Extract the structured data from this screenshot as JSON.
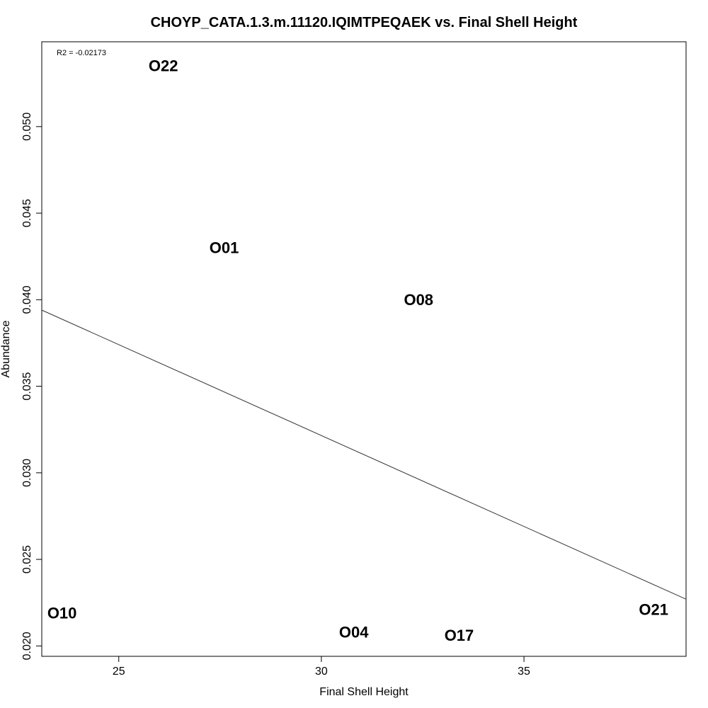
{
  "chart_data": {
    "type": "scatter",
    "title": "CHOYP_CATA.1.3.m.11120.IQIMTPEQAEK vs. Final Shell Height",
    "xlabel": "Final Shell Height",
    "ylabel": "Abundance",
    "xlim": [
      23.1,
      39.0
    ],
    "ylim": [
      0.0194,
      0.0549
    ],
    "xticks": [
      25,
      30,
      35
    ],
    "xtick_labels": [
      "25",
      "30",
      "35"
    ],
    "yticks": [
      0.02,
      0.025,
      0.03,
      0.035,
      0.04,
      0.045,
      0.05
    ],
    "ytick_labels": [
      "0.020",
      "0.025",
      "0.030",
      "0.035",
      "0.040",
      "0.045",
      "0.050"
    ],
    "points": [
      {
        "label": "O22",
        "x": 26.1,
        "y": 0.0535
      },
      {
        "label": "O01",
        "x": 27.6,
        "y": 0.043
      },
      {
        "label": "O08",
        "x": 32.4,
        "y": 0.04
      },
      {
        "label": "O10",
        "x": 23.6,
        "y": 0.0219
      },
      {
        "label": "O04",
        "x": 30.8,
        "y": 0.0208
      },
      {
        "label": "O17",
        "x": 33.4,
        "y": 0.0206
      },
      {
        "label": "O21",
        "x": 38.2,
        "y": 0.0221
      }
    ],
    "fit_line": {
      "x": [
        23.1,
        39.0
      ],
      "y": [
        0.0394,
        0.0227
      ]
    },
    "annotation": "R2 = -0.02173",
    "grid": false,
    "legend": "none"
  }
}
